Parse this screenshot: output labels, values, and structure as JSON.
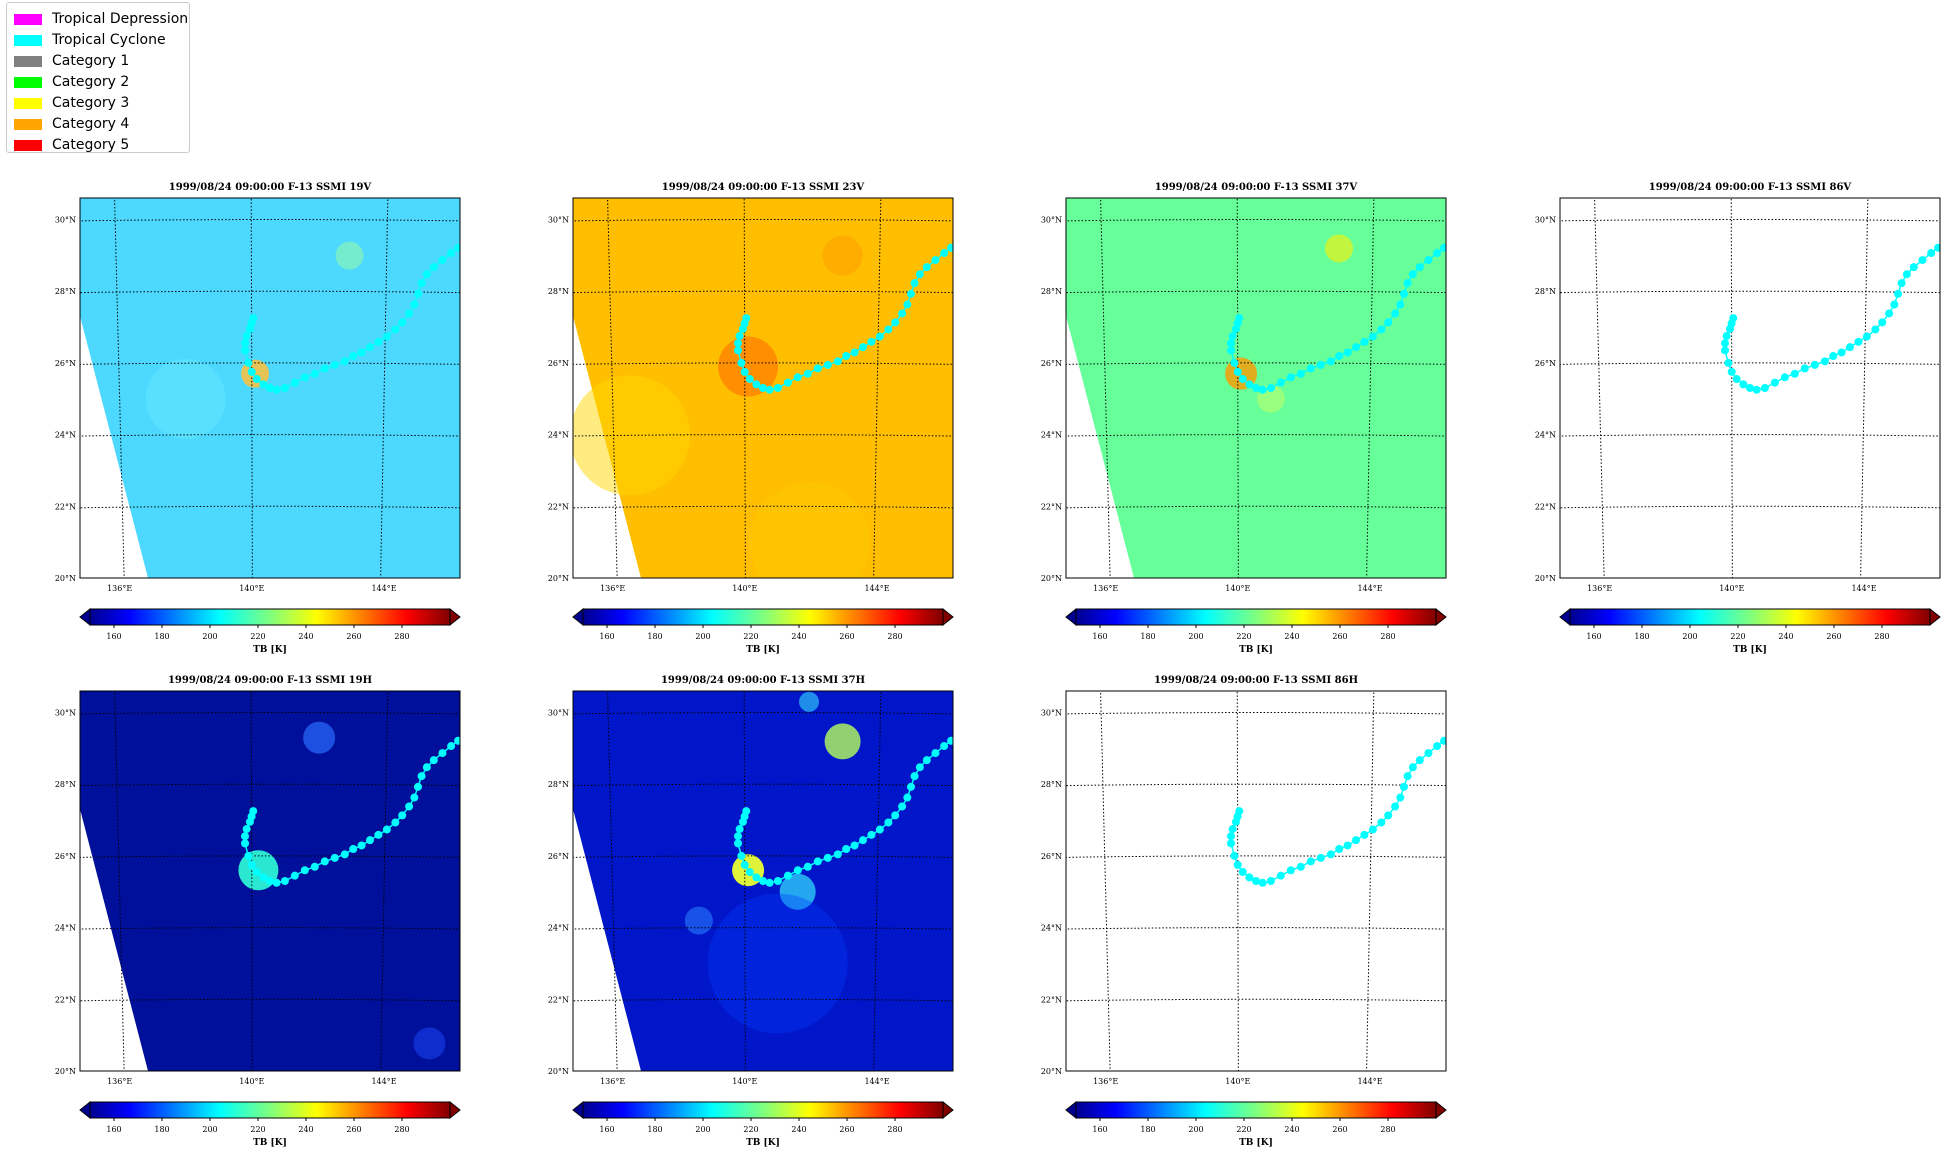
{
  "legend": {
    "items": [
      {
        "label": "Tropical Depression",
        "color": "#ff00ff"
      },
      {
        "label": "Tropical Cyclone",
        "color": "#00ffff"
      },
      {
        "label": "Category 1",
        "color": "#808080"
      },
      {
        "label": "Category 2",
        "color": "#00ff00"
      },
      {
        "label": "Category 3",
        "color": "#ffff00"
      },
      {
        "label": "Category 4",
        "color": "#ffa500"
      },
      {
        "label": "Category 5",
        "color": "#ff0000"
      }
    ]
  },
  "map": {
    "lat_labels": [
      "30°N",
      "28°N",
      "26°N",
      "24°N",
      "22°N",
      "20°N"
    ],
    "lon_labels": [
      "136°E",
      "140°E",
      "144°E"
    ],
    "lat_range": [
      20,
      30.6
    ],
    "lon_range": [
      134.8,
      146.3
    ],
    "track_color": "#00ffff",
    "track": [
      [
        140.05,
        27.25
      ],
      [
        140.0,
        27.1
      ],
      [
        139.95,
        26.95
      ],
      [
        139.85,
        26.75
      ],
      [
        139.8,
        26.55
      ],
      [
        139.8,
        26.35
      ],
      [
        139.9,
        26.0
      ],
      [
        140.0,
        25.75
      ],
      [
        140.15,
        25.55
      ],
      [
        140.35,
        25.4
      ],
      [
        140.55,
        25.3
      ],
      [
        140.75,
        25.25
      ],
      [
        141.0,
        25.3
      ],
      [
        141.3,
        25.45
      ],
      [
        141.6,
        25.6
      ],
      [
        141.9,
        25.7
      ],
      [
        142.2,
        25.85
      ],
      [
        142.5,
        25.95
      ],
      [
        142.8,
        26.05
      ],
      [
        143.05,
        26.2
      ],
      [
        143.3,
        26.3
      ],
      [
        143.55,
        26.45
      ],
      [
        143.8,
        26.6
      ],
      [
        144.05,
        26.75
      ],
      [
        144.3,
        26.95
      ],
      [
        144.5,
        27.15
      ],
      [
        144.7,
        27.4
      ],
      [
        144.85,
        27.65
      ],
      [
        144.95,
        27.95
      ],
      [
        145.05,
        28.25
      ],
      [
        145.2,
        28.5
      ],
      [
        145.4,
        28.7
      ],
      [
        145.65,
        28.9
      ],
      [
        145.9,
        29.1
      ],
      [
        146.1,
        29.25
      ],
      [
        146.3,
        29.35
      ]
    ]
  },
  "panels": [
    {
      "title": "1999/08/24 09:00:00  F-13 SSMI 19V",
      "cbar_label": "TB [K]",
      "has_data": true,
      "bg": "#4dd8ff"
    },
    {
      "title": "1999/08/24 09:00:00  F-13 SSMI 23V",
      "cbar_label": "TB [K]",
      "has_data": true,
      "bg": "#ffbf00"
    },
    {
      "title": "1999/08/24 09:00:00  F-13 SSMI 37V",
      "cbar_label": "TB [K]",
      "has_data": true,
      "bg": "#66ff99"
    },
    {
      "title": "1999/08/24 09:00:00  F-13 SSMI 86V",
      "cbar_label": "TB [K]",
      "has_data": false,
      "bg": "#ffffff"
    },
    {
      "title": "1999/08/24 09:00:00  F-13 SSMI 19H",
      "cbar_label": "TB [K]",
      "has_data": true,
      "bg": "#00109a"
    },
    {
      "title": "1999/08/24 09:00:00  F-13 SSMI 37H",
      "cbar_label": "TB [K]",
      "has_data": true,
      "bg": "#0016c8"
    },
    {
      "title": "1999/08/24 09:00:00  F-13 SSMI 86H",
      "cbar_label": "TB [K]",
      "has_data": false,
      "bg": "#ffffff"
    }
  ],
  "colorbar": {
    "ticks": [
      "160",
      "180",
      "200",
      "220",
      "240",
      "260",
      "280"
    ],
    "range": [
      150,
      300
    ],
    "tick_values": [
      160,
      180,
      200,
      220,
      240,
      260,
      280
    ]
  }
}
